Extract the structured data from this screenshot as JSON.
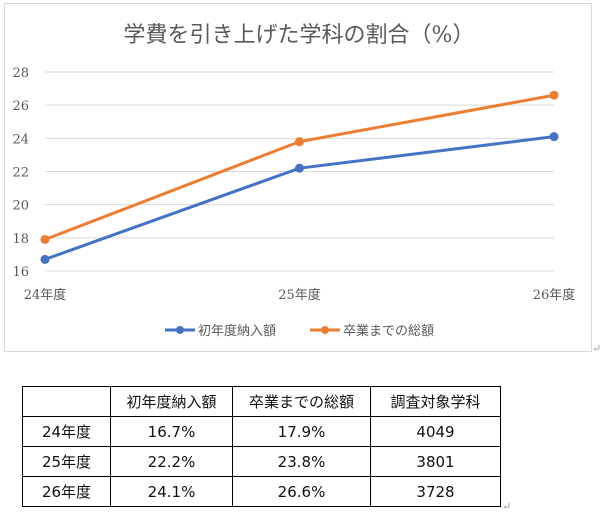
{
  "chart_data": {
    "type": "line",
    "title": "学費を引き上げた学科の割合（%）",
    "categories": [
      "24年度",
      "25年度",
      "26年度"
    ],
    "series": [
      {
        "name": "初年度納入額",
        "values": [
          16.7,
          22.2,
          24.1
        ],
        "color": "#4472c4"
      },
      {
        "name": "卒業までの総額",
        "values": [
          17.9,
          23.8,
          26.6
        ],
        "color": "#ed7d31"
      }
    ],
    "ylim": [
      16,
      28
    ],
    "yticks": [
      16,
      18,
      20,
      22,
      24,
      26,
      28
    ],
    "grid": true,
    "legend": "bottom"
  },
  "table": {
    "headers": [
      "",
      "初年度納入額",
      "卒業までの総額",
      "調査対象学科"
    ],
    "rows": [
      [
        "24年度",
        "16.7%",
        "17.9%",
        "4049"
      ],
      [
        "25年度",
        "22.2%",
        "23.8%",
        "3801"
      ],
      [
        "26年度",
        "24.1%",
        "26.6%",
        "3728"
      ]
    ]
  },
  "marks": {
    "return": "↵"
  }
}
